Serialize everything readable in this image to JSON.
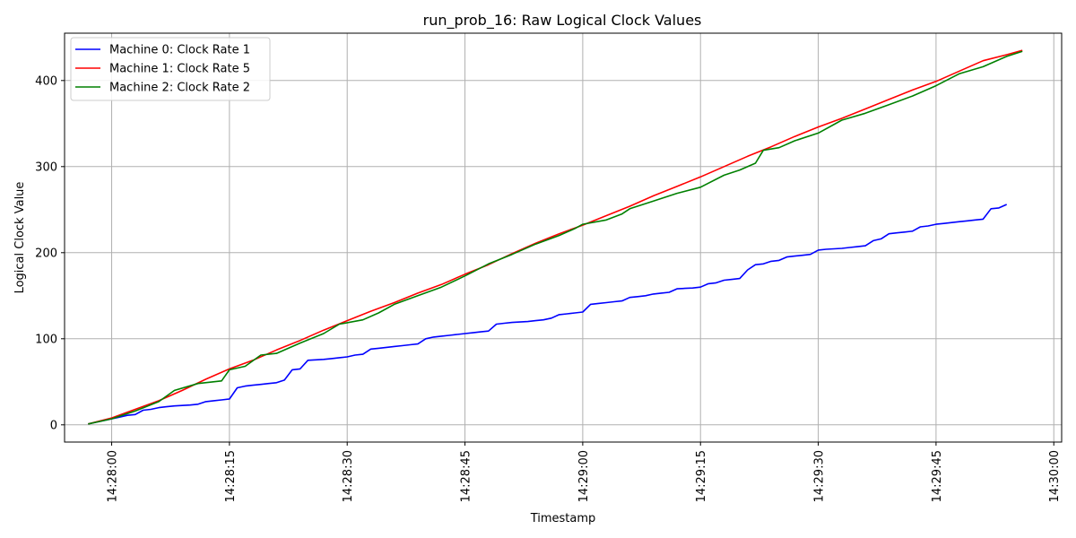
{
  "chart_data": {
    "type": "line",
    "title": "run_prob_16: Raw Logical Clock Values",
    "xlabel": "Timestamp",
    "ylabel": "Logical Clock Value",
    "x_ticks": [
      "14:28:00",
      "14:28:15",
      "14:28:30",
      "14:28:45",
      "14:29:00",
      "14:29:15",
      "14:29:30",
      "14:29:45",
      "14:30:00"
    ],
    "y_ticks": [
      0,
      100,
      200,
      300,
      400
    ],
    "xlim": [
      "14:27:54",
      "14:30:01"
    ],
    "ylim": [
      -20,
      455
    ],
    "grid": true,
    "legend_position": "top-left",
    "series": [
      {
        "name": "Machine 0: Clock Rate 1",
        "color": "#0000ff",
        "points": [
          [
            "14:27:57",
            1
          ],
          [
            "14:27:58",
            3
          ],
          [
            "14:27:59",
            5
          ],
          [
            "14:28:00",
            7
          ],
          [
            "14:28:01",
            9
          ],
          [
            "14:28:02",
            11
          ],
          [
            "14:28:03",
            12
          ],
          [
            "14:28:04",
            17
          ],
          [
            "14:28:05",
            18
          ],
          [
            "14:28:06",
            20
          ],
          [
            "14:28:07",
            21
          ],
          [
            "14:28:08",
            22
          ],
          [
            "14:28:09",
            22.5
          ],
          [
            "14:28:10",
            23
          ],
          [
            "14:28:11",
            24
          ],
          [
            "14:28:12",
            27
          ],
          [
            "14:28:13",
            28
          ],
          [
            "14:28:14",
            29
          ],
          [
            "14:28:15",
            30
          ],
          [
            "14:28:16",
            43
          ],
          [
            "14:28:17",
            45
          ],
          [
            "14:28:18",
            46
          ],
          [
            "14:28:19",
            47
          ],
          [
            "14:28:20",
            48
          ],
          [
            "14:28:21",
            49
          ],
          [
            "14:28:22",
            52
          ],
          [
            "14:28:23",
            64
          ],
          [
            "14:28:24",
            65
          ],
          [
            "14:28:25",
            75
          ],
          [
            "14:28:26",
            75.5
          ],
          [
            "14:28:27",
            76
          ],
          [
            "14:28:28",
            77
          ],
          [
            "14:28:29",
            78
          ],
          [
            "14:28:30",
            79
          ],
          [
            "14:28:31",
            81
          ],
          [
            "14:28:32",
            82
          ],
          [
            "14:28:33",
            88
          ],
          [
            "14:28:34",
            89
          ],
          [
            "14:28:35",
            90
          ],
          [
            "14:28:36",
            91
          ],
          [
            "14:28:37",
            92
          ],
          [
            "14:28:38",
            93
          ],
          [
            "14:28:39",
            94
          ],
          [
            "14:28:40",
            100
          ],
          [
            "14:28:41",
            102
          ],
          [
            "14:28:42",
            103
          ],
          [
            "14:28:43",
            104
          ],
          [
            "14:28:44",
            105
          ],
          [
            "14:28:45",
            106
          ],
          [
            "14:28:46",
            107
          ],
          [
            "14:28:47",
            108
          ],
          [
            "14:28:48",
            109
          ],
          [
            "14:28:49",
            117
          ],
          [
            "14:28:50",
            118
          ],
          [
            "14:28:51",
            119
          ],
          [
            "14:28:52",
            119.5
          ],
          [
            "14:28:53",
            120
          ],
          [
            "14:28:54",
            121
          ],
          [
            "14:28:55",
            122
          ],
          [
            "14:28:56",
            124
          ],
          [
            "14:28:57",
            128
          ],
          [
            "14:28:58",
            129
          ],
          [
            "14:28:59",
            130
          ],
          [
            "14:29:00",
            131
          ],
          [
            "14:29:01",
            140
          ],
          [
            "14:29:02",
            141
          ],
          [
            "14:29:03",
            142
          ],
          [
            "14:29:04",
            143
          ],
          [
            "14:29:05",
            144
          ],
          [
            "14:29:06",
            148
          ],
          [
            "14:29:07",
            149
          ],
          [
            "14:29:08",
            150
          ],
          [
            "14:29:09",
            152
          ],
          [
            "14:29:10",
            153
          ],
          [
            "14:29:11",
            154
          ],
          [
            "14:29:12",
            158
          ],
          [
            "14:29:13",
            158.5
          ],
          [
            "14:29:14",
            159
          ],
          [
            "14:29:15",
            160
          ],
          [
            "14:29:16",
            164
          ],
          [
            "14:29:17",
            165
          ],
          [
            "14:29:18",
            168
          ],
          [
            "14:29:19",
            169
          ],
          [
            "14:29:20",
            170
          ],
          [
            "14:29:21",
            180
          ],
          [
            "14:29:22",
            186
          ],
          [
            "14:29:23",
            187
          ],
          [
            "14:29:24",
            190
          ],
          [
            "14:29:25",
            191
          ],
          [
            "14:29:26",
            195
          ],
          [
            "14:29:27",
            196
          ],
          [
            "14:29:28",
            197
          ],
          [
            "14:29:29",
            198
          ],
          [
            "14:29:30",
            203
          ],
          [
            "14:29:31",
            204
          ],
          [
            "14:29:32",
            204.5
          ],
          [
            "14:29:33",
            205
          ],
          [
            "14:29:34",
            206
          ],
          [
            "14:29:35",
            207
          ],
          [
            "14:29:36",
            208
          ],
          [
            "14:29:37",
            214
          ],
          [
            "14:29:38",
            216
          ],
          [
            "14:29:39",
            222
          ],
          [
            "14:29:40",
            223
          ],
          [
            "14:29:41",
            224
          ],
          [
            "14:29:42",
            225
          ],
          [
            "14:29:43",
            230
          ],
          [
            "14:29:44",
            231
          ],
          [
            "14:29:45",
            233
          ],
          [
            "14:29:46",
            234
          ],
          [
            "14:29:47",
            235
          ],
          [
            "14:29:48",
            236
          ],
          [
            "14:29:49",
            237
          ],
          [
            "14:29:50",
            238
          ],
          [
            "14:29:51",
            239
          ],
          [
            "14:29:52",
            251
          ],
          [
            "14:29:53",
            252
          ],
          [
            "14:29:54",
            256
          ]
        ]
      },
      {
        "name": "Machine 1: Clock Rate 5",
        "color": "#ff0000",
        "points": [
          [
            "14:27:57",
            1
          ],
          [
            "14:28:00",
            8
          ],
          [
            "14:28:03",
            18
          ],
          [
            "14:28:06",
            28
          ],
          [
            "14:28:09",
            40
          ],
          [
            "14:28:12",
            53
          ],
          [
            "14:28:15",
            65
          ],
          [
            "14:28:18",
            75
          ],
          [
            "14:28:21",
            87
          ],
          [
            "14:28:24",
            98
          ],
          [
            "14:28:27",
            110
          ],
          [
            "14:28:30",
            121
          ],
          [
            "14:28:33",
            132
          ],
          [
            "14:28:36",
            142
          ],
          [
            "14:28:39",
            153
          ],
          [
            "14:28:42",
            163
          ],
          [
            "14:28:45",
            175
          ],
          [
            "14:28:48",
            186
          ],
          [
            "14:28:51",
            199
          ],
          [
            "14:28:54",
            211
          ],
          [
            "14:28:57",
            222
          ],
          [
            "14:29:00",
            232
          ],
          [
            "14:29:03",
            243
          ],
          [
            "14:29:06",
            254
          ],
          [
            "14:29:09",
            266
          ],
          [
            "14:29:12",
            277
          ],
          [
            "14:29:15",
            288
          ],
          [
            "14:29:18",
            300
          ],
          [
            "14:29:21",
            312
          ],
          [
            "14:29:24",
            323
          ],
          [
            "14:29:27",
            335
          ],
          [
            "14:29:30",
            346
          ],
          [
            "14:29:33",
            356
          ],
          [
            "14:29:36",
            367
          ],
          [
            "14:29:39",
            378
          ],
          [
            "14:29:42",
            389
          ],
          [
            "14:29:45",
            399
          ],
          [
            "14:29:48",
            411
          ],
          [
            "14:29:51",
            423
          ],
          [
            "14:29:54",
            430
          ],
          [
            "14:29:56",
            435
          ]
        ]
      },
      {
        "name": "Machine 2: Clock Rate 2",
        "color": "#008000",
        "points": [
          [
            "14:27:57",
            1
          ],
          [
            "14:28:00",
            7
          ],
          [
            "14:28:03",
            16
          ],
          [
            "14:28:06",
            27
          ],
          [
            "14:28:08",
            40
          ],
          [
            "14:28:11",
            48
          ],
          [
            "14:28:14",
            51
          ],
          [
            "14:28:15",
            64
          ],
          [
            "14:28:17",
            68
          ],
          [
            "14:28:19",
            81
          ],
          [
            "14:28:21",
            83
          ],
          [
            "14:28:24",
            95
          ],
          [
            "14:28:27",
            106
          ],
          [
            "14:28:29",
            117
          ],
          [
            "14:28:32",
            122
          ],
          [
            "14:28:34",
            130
          ],
          [
            "14:28:36",
            140
          ],
          [
            "14:28:39",
            150
          ],
          [
            "14:28:42",
            160
          ],
          [
            "14:28:45",
            173
          ],
          [
            "14:28:48",
            187
          ],
          [
            "14:28:51",
            198
          ],
          [
            "14:28:54",
            210
          ],
          [
            "14:28:57",
            220
          ],
          [
            "14:28:59",
            228
          ],
          [
            "14:29:00",
            233
          ],
          [
            "14:29:03",
            238
          ],
          [
            "14:29:05",
            245
          ],
          [
            "14:29:06",
            251
          ],
          [
            "14:29:09",
            260
          ],
          [
            "14:29:12",
            269
          ],
          [
            "14:29:15",
            276
          ],
          [
            "14:29:18",
            290
          ],
          [
            "14:29:20",
            296
          ],
          [
            "14:29:22",
            304
          ],
          [
            "14:29:23",
            319
          ],
          [
            "14:29:25",
            322
          ],
          [
            "14:29:27",
            330
          ],
          [
            "14:29:30",
            339
          ],
          [
            "14:29:33",
            354
          ],
          [
            "14:29:36",
            362
          ],
          [
            "14:29:39",
            372
          ],
          [
            "14:29:42",
            382
          ],
          [
            "14:29:45",
            394
          ],
          [
            "14:29:48",
            408
          ],
          [
            "14:29:51",
            416
          ],
          [
            "14:29:54",
            428
          ],
          [
            "14:29:56",
            434
          ]
        ]
      }
    ]
  }
}
